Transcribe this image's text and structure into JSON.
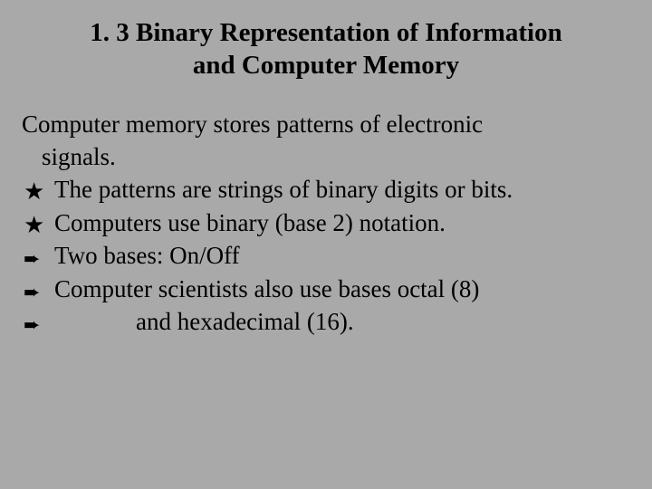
{
  "slide": {
    "title_line1": "1. 3  Binary Representation of Information",
    "title_line2": "and Computer Memory",
    "intro_line1": "Computer memory stores patterns of electronic",
    "intro_line2": "signals.",
    "bullets": [
      {
        "marker": "★",
        "marker_type": "star",
        "text": "The patterns are strings of binary digits or bits."
      },
      {
        "marker": "★",
        "marker_type": "star",
        "text": "Computers use binary (base 2) notation."
      },
      {
        "marker": "➨",
        "marker_type": "arrow",
        "text": "Two bases: On/Off"
      },
      {
        "marker": "➨",
        "marker_type": "arrow",
        "text": "Computer scientists also use bases octal (8)"
      },
      {
        "marker": "➨",
        "marker_type": "arrow",
        "text": "and hexadecimal (16).",
        "indented": true
      }
    ]
  },
  "style": {
    "background_color": "#a9a9a9",
    "text_color": "#000000",
    "title_fontsize": 29,
    "body_fontsize": 27,
    "font_family": "Times New Roman"
  }
}
